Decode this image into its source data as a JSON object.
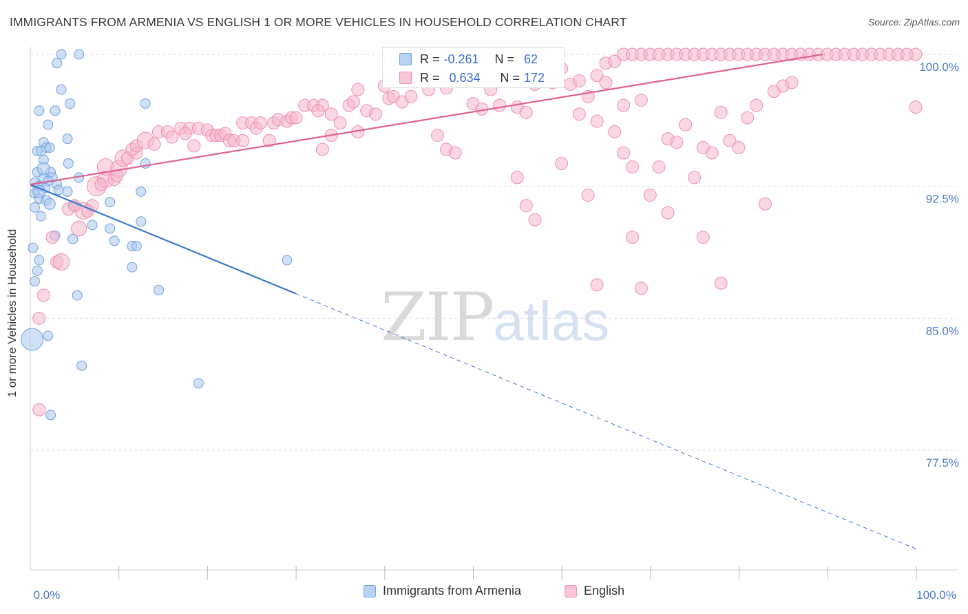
{
  "title": "IMMIGRANTS FROM ARMENIA VS ENGLISH 1 OR MORE VEHICLES IN HOUSEHOLD CORRELATION CHART",
  "source": "Source: ZipAtlas.com",
  "watermark": {
    "zip": "ZIP",
    "atlas": "atlas"
  },
  "stats": {
    "armenia": {
      "r_label": "R =",
      "r_value": "-0.261",
      "n_label": "N =",
      "n_value": "62"
    },
    "english": {
      "r_label": "R =",
      "r_value": "0.634",
      "n_label": "N =",
      "n_value": "172"
    }
  },
  "legend": {
    "armenia": "Immigrants from Armenia",
    "english": "English"
  },
  "colors": {
    "armenia_fill": "#a9c8ef",
    "armenia_stroke": "#6fa0e0",
    "armenia_line": "#3c78d0",
    "english_fill": "#f6b8cb",
    "english_stroke": "#ee8fae",
    "english_line": "#e0608e",
    "tick_text": "#4a78c8",
    "grid": "#dddddd"
  },
  "chart_data": {
    "type": "scatter",
    "title": "IMMIGRANTS FROM ARMENIA VS ENGLISH 1 OR MORE VEHICLES IN HOUSEHOLD CORRELATION CHART",
    "xlabel": "",
    "ylabel": "1 or more Vehicles in Household",
    "xlim": [
      0,
      100
    ],
    "ylim": [
      71.5,
      100.8
    ],
    "x_tick_labels": [
      {
        "v": 0,
        "label": "0.0%"
      },
      {
        "v": 100,
        "label": "100.0%"
      }
    ],
    "y_ticks": [
      {
        "v": 100,
        "label": "100.0%"
      },
      {
        "v": 92.5,
        "label": "92.5%"
      },
      {
        "v": 85,
        "label": "85.0%"
      },
      {
        "v": 77.5,
        "label": "77.5%"
      }
    ],
    "grid": true,
    "legend_position": "bottom-center",
    "series": [
      {
        "name": "Immigrants from Armenia",
        "trend": {
          "x0": 0,
          "y0": 92.6,
          "x1": 30,
          "y1": 86.4,
          "dash_x1": 100,
          "dash_y1": 71.9
        },
        "points": [
          [
            3.5,
            100,
            7
          ],
          [
            5.5,
            100,
            7
          ],
          [
            3,
            99.5,
            7
          ],
          [
            3.5,
            98,
            7
          ],
          [
            4.5,
            97.2,
            7
          ],
          [
            13,
            97.2,
            7
          ],
          [
            1,
            96.8,
            7
          ],
          [
            2.8,
            96.8,
            7
          ],
          [
            2,
            96,
            7
          ],
          [
            4.2,
            95.2,
            7
          ],
          [
            1.5,
            95,
            7
          ],
          [
            1.8,
            94.7,
            7
          ],
          [
            2.2,
            94.7,
            7
          ],
          [
            0.8,
            94.5,
            7
          ],
          [
            1.2,
            94.5,
            7
          ],
          [
            1.5,
            94,
            7
          ],
          [
            4.3,
            93.8,
            7
          ],
          [
            13,
            93.8,
            7
          ],
          [
            0.8,
            93.3,
            7
          ],
          [
            2.3,
            93.3,
            7
          ],
          [
            1.5,
            93,
            7
          ],
          [
            2.5,
            93,
            7
          ],
          [
            5.5,
            93,
            7
          ],
          [
            2,
            92.8,
            7
          ],
          [
            0.5,
            92.7,
            7
          ],
          [
            1,
            92.5,
            7
          ],
          [
            1.7,
            92.4,
            7
          ],
          [
            3,
            92.6,
            7
          ],
          [
            3.2,
            92.3,
            7
          ],
          [
            4.2,
            92.2,
            7
          ],
          [
            12.5,
            92.2,
            7
          ],
          [
            0.5,
            92.1,
            7
          ],
          [
            1,
            91.8,
            7
          ],
          [
            1.8,
            91.7,
            7
          ],
          [
            9,
            91.6,
            7
          ],
          [
            5,
            91.4,
            7
          ],
          [
            0.5,
            91.3,
            7
          ],
          [
            1.2,
            90.8,
            7
          ],
          [
            12.5,
            90.5,
            7
          ],
          [
            7,
            90.3,
            7
          ],
          [
            9,
            90.1,
            7
          ],
          [
            2.8,
            89.7,
            7
          ],
          [
            4.8,
            89.5,
            7
          ],
          [
            9.5,
            89.4,
            7
          ],
          [
            11.5,
            89.1,
            7
          ],
          [
            12,
            89.1,
            7
          ],
          [
            0.3,
            89,
            7
          ],
          [
            1,
            88.3,
            7
          ],
          [
            29,
            88.3,
            7
          ],
          [
            11.5,
            87.9,
            7
          ],
          [
            0.8,
            87.7,
            7
          ],
          [
            0.5,
            87.1,
            7
          ],
          [
            14.5,
            86.6,
            7
          ],
          [
            5.3,
            86.3,
            7
          ],
          [
            0.2,
            83.8,
            16
          ],
          [
            2,
            84,
            7
          ],
          [
            5.8,
            82.3,
            7
          ],
          [
            19,
            81.3,
            7
          ],
          [
            2.3,
            79.5,
            7
          ],
          [
            1,
            92.2,
            9
          ],
          [
            1.5,
            93.5,
            9
          ],
          [
            2.2,
            91.5,
            8
          ]
        ]
      },
      {
        "name": "English",
        "trend": {
          "x0": 0,
          "y0": 92.6,
          "x1": 89.5,
          "y1": 100
        },
        "points": [
          [
            1,
            79.8,
            9
          ],
          [
            1,
            85,
            9
          ],
          [
            1.5,
            86.3,
            9
          ],
          [
            3,
            88.2,
            9
          ],
          [
            3.5,
            88.2,
            12
          ],
          [
            2.5,
            89.6,
            9
          ],
          [
            5.5,
            90.1,
            11
          ],
          [
            6,
            91.1,
            12
          ],
          [
            4.3,
            91.2,
            9
          ],
          [
            5,
            91.4,
            9
          ],
          [
            7,
            91.4,
            9
          ],
          [
            6.5,
            91.1,
            9
          ],
          [
            7.5,
            92.5,
            14
          ],
          [
            8.5,
            92.9,
            12
          ],
          [
            8,
            92.6,
            9
          ],
          [
            9.5,
            92.9,
            9
          ],
          [
            8.5,
            93.6,
            12
          ],
          [
            10,
            93.5,
            12
          ],
          [
            9.8,
            93.1,
            9
          ],
          [
            10.5,
            94.1,
            12
          ],
          [
            11,
            94.1,
            9
          ],
          [
            12,
            94.4,
            9
          ],
          [
            11.5,
            94.6,
            9
          ],
          [
            12,
            94.8,
            9
          ],
          [
            13,
            95.1,
            12
          ],
          [
            14,
            94.9,
            9
          ],
          [
            14.5,
            95.6,
            9
          ],
          [
            15.5,
            95.6,
            9
          ],
          [
            16,
            95.3,
            9
          ],
          [
            17,
            95.8,
            9
          ],
          [
            18,
            95.8,
            9
          ],
          [
            17.5,
            95.5,
            9
          ],
          [
            19,
            95.8,
            9
          ],
          [
            20,
            95.7,
            9
          ],
          [
            20.5,
            95.4,
            9
          ],
          [
            21,
            95.4,
            9
          ],
          [
            21.5,
            95.4,
            9
          ],
          [
            22,
            95.5,
            9
          ],
          [
            22.5,
            95.1,
            9
          ],
          [
            23,
            95.1,
            9
          ],
          [
            18.5,
            94.8,
            9
          ],
          [
            24,
            95.1,
            9
          ],
          [
            24,
            96.1,
            9
          ],
          [
            25,
            96.1,
            9
          ],
          [
            25.5,
            95.8,
            9
          ],
          [
            26,
            96.1,
            9
          ],
          [
            27,
            95.1,
            9
          ],
          [
            27.5,
            96.1,
            9
          ],
          [
            28,
            96.3,
            9
          ],
          [
            29,
            96.2,
            9
          ],
          [
            29.5,
            96.4,
            9
          ],
          [
            30,
            96.4,
            9
          ],
          [
            31,
            97.1,
            9
          ],
          [
            32,
            97.1,
            9
          ],
          [
            33,
            97.1,
            9
          ],
          [
            32.5,
            96.8,
            9
          ],
          [
            34,
            96.6,
            9
          ],
          [
            35,
            96.1,
            9
          ],
          [
            36,
            97.1,
            9
          ],
          [
            36.5,
            97.3,
            9
          ],
          [
            37,
            98,
            9
          ],
          [
            38,
            96.8,
            9
          ],
          [
            39,
            96.6,
            9
          ],
          [
            40,
            98.2,
            9
          ],
          [
            40.5,
            97.5,
            9
          ],
          [
            41,
            97.6,
            9
          ],
          [
            42,
            97.3,
            9
          ],
          [
            43,
            97.6,
            9
          ],
          [
            44,
            98.8,
            9
          ],
          [
            45,
            98,
            9
          ],
          [
            46,
            98.7,
            9
          ],
          [
            47,
            98.1,
            9
          ],
          [
            48,
            99.2,
            9
          ],
          [
            49,
            98.9,
            9
          ],
          [
            50,
            97.2,
            9
          ],
          [
            51,
            96.9,
            9
          ],
          [
            52,
            98,
            9
          ],
          [
            53,
            97.1,
            9
          ],
          [
            54,
            99.2,
            9
          ],
          [
            55,
            97,
            9
          ],
          [
            56,
            96.7,
            9
          ],
          [
            57,
            98.3,
            9
          ],
          [
            58,
            99.4,
            9
          ],
          [
            59,
            98.4,
            9
          ],
          [
            60,
            99.2,
            9
          ],
          [
            61,
            98.3,
            9
          ],
          [
            62,
            98.5,
            9
          ],
          [
            63,
            97.6,
            9
          ],
          [
            64,
            98.8,
            9
          ],
          [
            65,
            99.5,
            9
          ],
          [
            66,
            99.6,
            9
          ],
          [
            67,
            100,
            9
          ],
          [
            68,
            100,
            9
          ],
          [
            69,
            100,
            9
          ],
          [
            70,
            100,
            9
          ],
          [
            71,
            100,
            9
          ],
          [
            72,
            100,
            9
          ],
          [
            73,
            100,
            9
          ],
          [
            74,
            100,
            9
          ],
          [
            75,
            100,
            9
          ],
          [
            76,
            100,
            9
          ],
          [
            77,
            100,
            9
          ],
          [
            78,
            100,
            9
          ],
          [
            79,
            100,
            9
          ],
          [
            80,
            100,
            9
          ],
          [
            81,
            100,
            9
          ],
          [
            82,
            100,
            9
          ],
          [
            83,
            100,
            9
          ],
          [
            84,
            100,
            9
          ],
          [
            85,
            100,
            9
          ],
          [
            86,
            100,
            9
          ],
          [
            87,
            100,
            9
          ],
          [
            88,
            100,
            9
          ],
          [
            89,
            100,
            9
          ],
          [
            90,
            100,
            9
          ],
          [
            91,
            100,
            9
          ],
          [
            92,
            100,
            9
          ],
          [
            93,
            100,
            9
          ],
          [
            94,
            100,
            9
          ],
          [
            95,
            100,
            9
          ],
          [
            96,
            100,
            9
          ],
          [
            97,
            100,
            9
          ],
          [
            98,
            100,
            9
          ],
          [
            99,
            100,
            9
          ],
          [
            100,
            100,
            9
          ],
          [
            100,
            97,
            9
          ],
          [
            34,
            95.4,
            9
          ],
          [
            37,
            95.6,
            9
          ],
          [
            33,
            94.6,
            9
          ],
          [
            46,
            95.4,
            9
          ],
          [
            47,
            94.6,
            9
          ],
          [
            48,
            94.4,
            9
          ],
          [
            55,
            93,
            9
          ],
          [
            56,
            91.4,
            9
          ],
          [
            57,
            90.6,
            9
          ],
          [
            60,
            93.8,
            9
          ],
          [
            62,
            96.6,
            9
          ],
          [
            64,
            96.2,
            9
          ],
          [
            66,
            95.6,
            9
          ],
          [
            67,
            94.4,
            9
          ],
          [
            68,
            93.6,
            9
          ],
          [
            70,
            92,
            9
          ],
          [
            71,
            93.6,
            9
          ],
          [
            72,
            95.2,
            9
          ],
          [
            73,
            95,
            9
          ],
          [
            74,
            96,
            9
          ],
          [
            75,
            93,
            9
          ],
          [
            76,
            94.7,
            9
          ],
          [
            77,
            94.4,
            9
          ],
          [
            78,
            96.7,
            9
          ],
          [
            79,
            95.1,
            9
          ],
          [
            80,
            94.7,
            9
          ],
          [
            81,
            96.4,
            9
          ],
          [
            82,
            97.1,
            9
          ],
          [
            83,
            91.5,
            9
          ],
          [
            84,
            97.9,
            9
          ],
          [
            85,
            98.2,
            9
          ],
          [
            86,
            98.4,
            9
          ],
          [
            72,
            91,
            9
          ],
          [
            69,
            86.7,
            9
          ],
          [
            64,
            86.9,
            9
          ],
          [
            68,
            89.6,
            9
          ],
          [
            76,
            89.6,
            9
          ],
          [
            78,
            87,
            9
          ],
          [
            63,
            92,
            9
          ],
          [
            65,
            98.4,
            9
          ],
          [
            67,
            97.1,
            9
          ],
          [
            69,
            97.4,
            9
          ]
        ]
      }
    ]
  }
}
